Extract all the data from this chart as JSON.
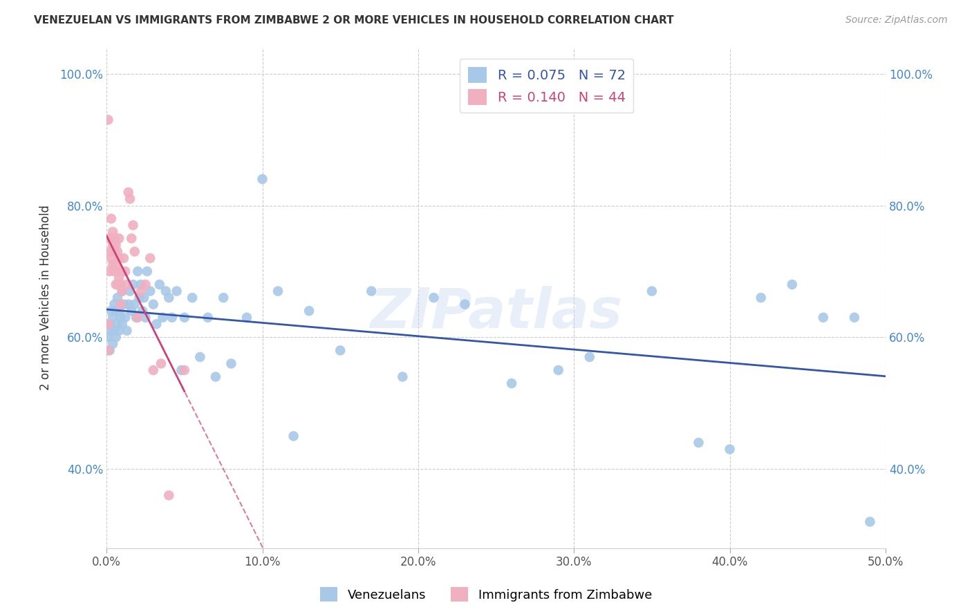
{
  "title": "VENEZUELAN VS IMMIGRANTS FROM ZIMBABWE 2 OR MORE VEHICLES IN HOUSEHOLD CORRELATION CHART",
  "source": "Source: ZipAtlas.com",
  "ylabel": "2 or more Vehicles in Household",
  "xlim": [
    0.0,
    0.5
  ],
  "ylim": [
    0.28,
    1.04
  ],
  "xticks": [
    0.0,
    0.1,
    0.2,
    0.3,
    0.4,
    0.5
  ],
  "xticklabels": [
    "0.0%",
    "10.0%",
    "20.0%",
    "30.0%",
    "40.0%",
    "50.0%"
  ],
  "yticks": [
    0.4,
    0.6,
    0.8,
    1.0
  ],
  "yticklabels": [
    "40.0%",
    "60.0%",
    "80.0%",
    "100.0%"
  ],
  "blue_R": 0.075,
  "blue_N": 72,
  "pink_R": 0.14,
  "pink_N": 44,
  "blue_color": "#a8c8e8",
  "pink_color": "#f0b0c0",
  "blue_line_color": "#3355aa",
  "pink_line_color": "#cc4477",
  "watermark": "ZIPatlas",
  "legend_label_blue": "Venezuelans",
  "legend_label_pink": "Immigrants from Zimbabwe",
  "blue_x": [
    0.001,
    0.002,
    0.002,
    0.003,
    0.003,
    0.004,
    0.004,
    0.005,
    0.005,
    0.006,
    0.006,
    0.007,
    0.007,
    0.008,
    0.008,
    0.009,
    0.01,
    0.01,
    0.011,
    0.012,
    0.013,
    0.014,
    0.015,
    0.016,
    0.017,
    0.018,
    0.019,
    0.02,
    0.021,
    0.022,
    0.023,
    0.024,
    0.025,
    0.026,
    0.028,
    0.03,
    0.032,
    0.034,
    0.036,
    0.038,
    0.04,
    0.042,
    0.045,
    0.048,
    0.05,
    0.055,
    0.06,
    0.065,
    0.07,
    0.075,
    0.08,
    0.09,
    0.1,
    0.11,
    0.12,
    0.13,
    0.15,
    0.17,
    0.19,
    0.21,
    0.23,
    0.26,
    0.29,
    0.31,
    0.35,
    0.38,
    0.4,
    0.42,
    0.44,
    0.46,
    0.48,
    0.49
  ],
  "blue_y": [
    0.6,
    0.62,
    0.58,
    0.61,
    0.64,
    0.59,
    0.63,
    0.61,
    0.65,
    0.6,
    0.64,
    0.62,
    0.66,
    0.61,
    0.64,
    0.63,
    0.62,
    0.67,
    0.65,
    0.63,
    0.61,
    0.65,
    0.67,
    0.64,
    0.68,
    0.65,
    0.63,
    0.7,
    0.66,
    0.68,
    0.64,
    0.66,
    0.63,
    0.7,
    0.67,
    0.65,
    0.62,
    0.68,
    0.63,
    0.67,
    0.66,
    0.63,
    0.67,
    0.55,
    0.63,
    0.66,
    0.57,
    0.63,
    0.54,
    0.66,
    0.56,
    0.63,
    0.84,
    0.67,
    0.45,
    0.64,
    0.58,
    0.67,
    0.54,
    0.66,
    0.65,
    0.53,
    0.55,
    0.57,
    0.67,
    0.44,
    0.43,
    0.66,
    0.68,
    0.63,
    0.63,
    0.32
  ],
  "pink_x": [
    0.001,
    0.001,
    0.001,
    0.002,
    0.002,
    0.002,
    0.003,
    0.003,
    0.003,
    0.004,
    0.004,
    0.004,
    0.005,
    0.005,
    0.005,
    0.006,
    0.006,
    0.006,
    0.007,
    0.007,
    0.007,
    0.008,
    0.008,
    0.008,
    0.009,
    0.009,
    0.01,
    0.01,
    0.011,
    0.012,
    0.013,
    0.014,
    0.015,
    0.016,
    0.017,
    0.018,
    0.02,
    0.022,
    0.025,
    0.028,
    0.03,
    0.035,
    0.04,
    0.05
  ],
  "pink_y": [
    0.93,
    0.62,
    0.58,
    0.75,
    0.73,
    0.7,
    0.78,
    0.75,
    0.72,
    0.76,
    0.74,
    0.71,
    0.75,
    0.73,
    0.7,
    0.74,
    0.71,
    0.68,
    0.73,
    0.7,
    0.68,
    0.75,
    0.72,
    0.69,
    0.68,
    0.65,
    0.7,
    0.67,
    0.72,
    0.7,
    0.68,
    0.82,
    0.81,
    0.75,
    0.77,
    0.73,
    0.63,
    0.67,
    0.68,
    0.72,
    0.55,
    0.56,
    0.36,
    0.55
  ]
}
